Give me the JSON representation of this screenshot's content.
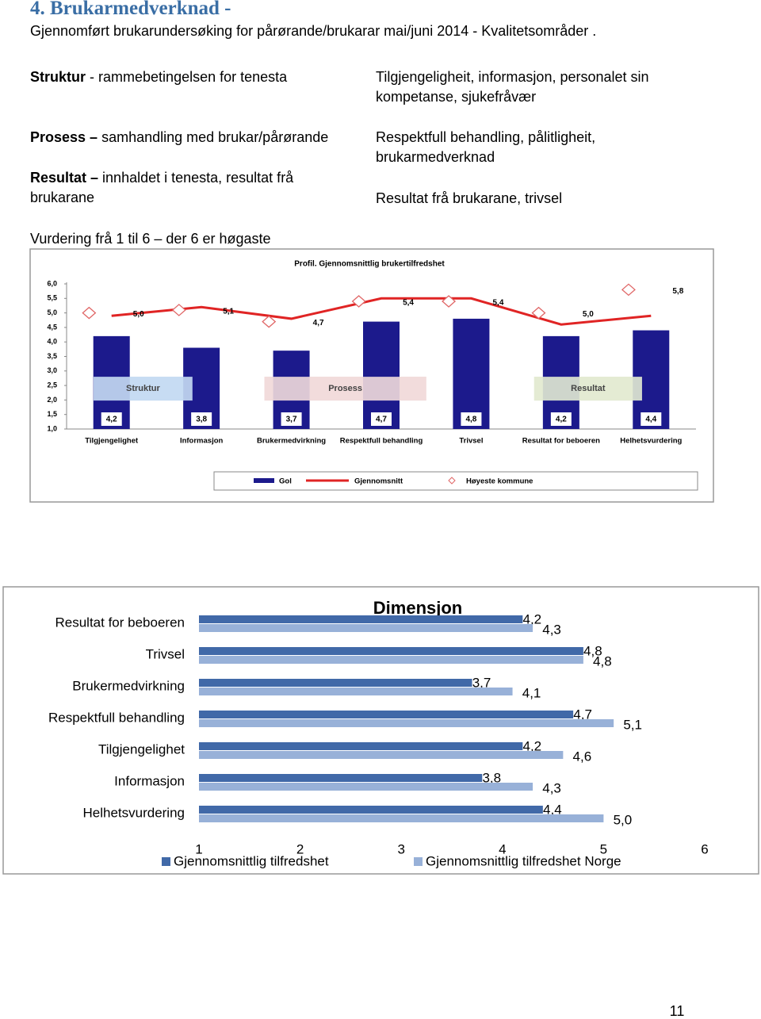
{
  "header": {
    "title": "4. Brukarmedverknad -",
    "subtitle": "Gjennomført brukarundersøking  for pårørande/brukarar  mai/juni 2014 - Kvalitetsområder ."
  },
  "areas": [
    {
      "label": "Struktur",
      "rest": "- rammebetingelsen for tenesta",
      "description": "Tilgjengeligheit, informasjon, personalet sin kompetanse, sjukefråvær"
    },
    {
      "label": "Prosess –",
      "rest": "samhandling med brukar/pårørande",
      "description": "Respektfull behandling, pålitligheit, brukarmedverknad"
    },
    {
      "label": "Resultat –",
      "rest": "innhaldet i tenesta, resultat frå brukarane",
      "description": "Resultat frå brukarane, trivsel"
    }
  ],
  "scale_note": "Vurdering frå 1 til 6 – der 6 er høgaste",
  "page_number": "11",
  "chart_data": [
    {
      "type": "bar",
      "title": "Profil. Gjennomsnittlig brukertilfredshet",
      "categories": [
        "Tilgjengelighet",
        "Informasjon",
        "Brukermedvirkning",
        "Respektfull behandling",
        "Trivsel",
        "Resultat for beboeren",
        "Helhetsvurdering"
      ],
      "annotations": [
        "Struktur",
        "Prosess",
        "Resultat"
      ],
      "series": [
        {
          "name": "Gol",
          "type": "bar",
          "color": "#1c1a8c",
          "values": [
            4.2,
            3.8,
            3.7,
            4.7,
            4.8,
            4.2,
            4.4
          ],
          "value_labels": [
            "4,2",
            "3,8",
            "3,7",
            "4,7",
            "4,8",
            "4,2",
            "4,4"
          ]
        },
        {
          "name": "Gjennomsnitt",
          "type": "line",
          "color": "#e02424",
          "values": [
            4.9,
            5.2,
            4.8,
            5.5,
            5.5,
            4.6,
            4.9
          ]
        },
        {
          "name": "Høyeste kommune",
          "type": "scatter",
          "color": "#e06666",
          "values": [
            5.0,
            5.1,
            4.7,
            5.4,
            5.4,
            5.0,
            5.8
          ],
          "value_labels": [
            "5,0",
            "5,1",
            "4,7",
            "5,4",
            "5,4",
            "5,0",
            "5,8"
          ]
        }
      ],
      "ylim": [
        1,
        6
      ],
      "yticks": [
        {
          "value": 6,
          "label": "6,0"
        },
        {
          "value": 5.5,
          "label": "5,5"
        },
        {
          "value": 5,
          "label": "5,0"
        },
        {
          "value": 4.5,
          "label": "4,5"
        },
        {
          "value": 4,
          "label": "4,0"
        },
        {
          "value": 3.5,
          "label": "3,5"
        },
        {
          "value": 3,
          "label": "3,0"
        },
        {
          "value": 2.5,
          "label": "2,5"
        },
        {
          "value": 2,
          "label": "2,0"
        },
        {
          "value": 1.5,
          "label": "1,5"
        },
        {
          "value": 1,
          "label": "1,0"
        }
      ],
      "grid": false
    },
    {
      "type": "bar",
      "horizontal": true,
      "title": "Dimensjon",
      "categories": [
        "Resultat for beboeren",
        "Trivsel",
        "Brukermedvirkning",
        "Respektfull behandling",
        "Tilgjengelighet",
        "Informasjon",
        "Helhetsvurdering"
      ],
      "series": [
        {
          "name": "Gjennomsnittlig tilfredshet",
          "color": "#4169a8",
          "values": [
            4.2,
            4.8,
            3.7,
            4.7,
            4.2,
            3.8,
            4.4
          ],
          "value_labels": [
            "4,2",
            "4,8",
            "3,7",
            "4,7",
            "4,2",
            "3,8",
            "4,4"
          ]
        },
        {
          "name": "Gjennomsnittlig tilfredshet Norge",
          "color": "#98b1d8",
          "values": [
            4.3,
            4.8,
            4.1,
            5.1,
            4.6,
            4.3,
            5.0
          ],
          "value_labels": [
            "4,3",
            "4,8",
            "4,1",
            "5,1",
            "4,6",
            "4,3",
            "5,0"
          ]
        }
      ],
      "xlim": [
        1,
        6
      ],
      "xticks": [
        1,
        2,
        3,
        4,
        5,
        6
      ],
      "grid": false
    }
  ]
}
